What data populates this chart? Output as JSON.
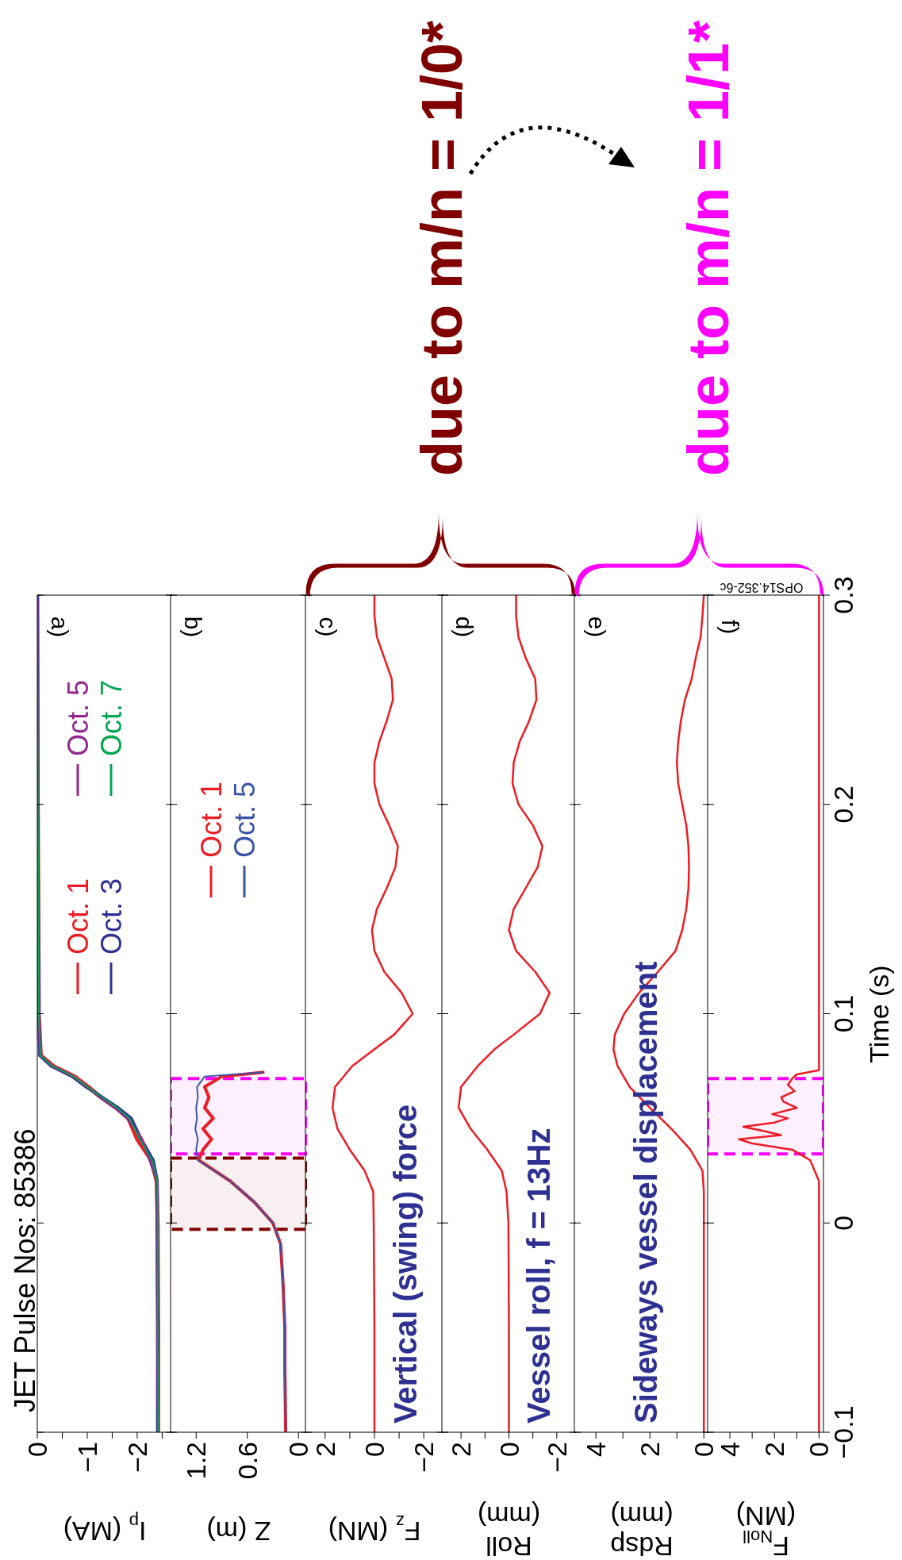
{
  "chart_data": [
    {
      "type": "line",
      "title": "JET Pulse Nos: 85386",
      "xlabel": "I$_{p}$ (MA)",
      "annotations": [
        "a)"
      ],
      "legend": "top left",
      "tick_labels": "x",
      "xlim": [
        0,
        -2.7
      ],
      "xticks": [
        0,
        {
          "value": -0.5,
          "label": null
        },
        {
          "value": -1,
          "label": "−1"
        },
        {
          "value": -1.5,
          "label": null
        },
        {
          "value": -2,
          "label": "−2"
        },
        {
          "value": -2.5,
          "label": null
        }
      ],
      "ylim": [
        -0.1,
        0.3
      ],
      "yticks": [
        -0.1,
        0,
        0.1,
        0.2,
        0.3
      ],
      "series": [
        {
          "name": "Oct. 1",
          "color": "#ed1c24",
          "x": [
            -2.42,
            -2.42,
            -2.41,
            -2.39,
            -2.28,
            -2.0,
            -1.82,
            -1.58,
            -1.28,
            -1.02,
            -0.75,
            -0.32,
            -0.07,
            -0.03,
            -0.01,
            0
          ],
          "values": [
            -0.1,
            -0.05,
            0,
            0.02,
            0.03,
            0.04,
            0.05,
            0.055,
            0.06,
            0.065,
            0.07,
            0.075,
            0.08,
            0.1,
            0.2,
            0.3
          ]
        },
        {
          "name": "Oct. 3",
          "color": "#2e3192",
          "x": [
            -2.41,
            -2.41,
            -2.4,
            -2.4,
            -2.32,
            -2.08,
            -1.88,
            -1.62,
            -1.3,
            -0.98,
            -0.7,
            -0.28,
            -0.05,
            -0.03,
            -0.01,
            0
          ],
          "values": [
            -0.1,
            -0.05,
            0,
            0.02,
            0.03,
            0.04,
            0.05,
            0.055,
            0.06,
            0.065,
            0.07,
            0.075,
            0.08,
            0.1,
            0.2,
            0.3
          ]
        },
        {
          "name": "Oct. 5",
          "color": "#92278f",
          "x": [
            -2.42,
            -2.41,
            -2.41,
            -2.4,
            -2.25,
            -2.1,
            -1.8,
            -1.55,
            -1.25,
            -1.0,
            -0.72,
            -0.3,
            -0.06,
            -0.03,
            -0.01,
            0
          ],
          "values": [
            -0.1,
            -0.05,
            0,
            0.02,
            0.03,
            0.04,
            0.05,
            0.055,
            0.06,
            0.065,
            0.07,
            0.075,
            0.08,
            0.1,
            0.2,
            0.3
          ]
        },
        {
          "name": "Oct. 7",
          "color": "#00a651",
          "x": [
            -2.42,
            -2.41,
            -2.41,
            -2.4,
            -2.3,
            -2.05,
            -1.85,
            -1.6,
            -1.3,
            -1.0,
            -0.73,
            -0.3,
            -0.06,
            -0.03,
            -0.01,
            0
          ],
          "values": [
            -0.1,
            -0.05,
            0,
            0.02,
            0.03,
            0.04,
            0.05,
            0.055,
            0.06,
            0.065,
            0.07,
            0.075,
            0.08,
            0.1,
            0.2,
            0.3
          ]
        }
      ]
    },
    {
      "type": "line",
      "xlabel": "Z (m)",
      "annotations": [
        "b)"
      ],
      "legend": "top left",
      "tick_labels": "x",
      "xlim": [
        1.5,
        -0.1
      ],
      "xticks": [
        0,
        0.6,
        1.2
      ],
      "ylim": [
        -0.1,
        0.3
      ],
      "yticks": [
        -0.1,
        0,
        0.1,
        0.2,
        0.3
      ],
      "bands": [
        {
          "axis": "y",
          "from": -0.003,
          "to": 0.031,
          "color": "#800000"
        },
        {
          "axis": "y",
          "from": 0.033,
          "to": 0.069,
          "color": "#ff00ff"
        }
      ],
      "series": [
        {
          "name": "Oct. 1",
          "color": "#ed1c24",
          "x": [
            0.15,
            0.16,
            0.16,
            0.18,
            0.21,
            0.3,
            0.52,
            0.8,
            1.17,
            1.12,
            1.02,
            1.12,
            1.0,
            1.1,
            1.05,
            1.1,
            0.9,
            0.4
          ],
          "values": [
            -0.1,
            -0.07,
            -0.05,
            -0.03,
            -0.01,
            0,
            0.01,
            0.02,
            0.03,
            0.035,
            0.04,
            0.045,
            0.05,
            0.055,
            0.06,
            0.065,
            0.07,
            0.072
          ]
        },
        {
          "name": "Oct. 5",
          "color": "#3b54a5",
          "x": [
            0.15,
            0.16,
            0.16,
            0.18,
            0.21,
            0.3,
            0.52,
            0.8,
            1.18,
            1.2,
            1.18,
            1.21,
            1.19,
            1.2,
            1.18,
            1.19,
            1.1,
            0.4
          ],
          "values": [
            -0.1,
            -0.07,
            -0.05,
            -0.03,
            -0.01,
            0,
            0.01,
            0.02,
            0.03,
            0.035,
            0.04,
            0.045,
            0.05,
            0.055,
            0.06,
            0.065,
            0.07,
            0.072
          ]
        }
      ]
    },
    {
      "type": "line",
      "xlabel": "F$_{z}$ (MN)",
      "annotations": [
        "c)",
        "Vertical (swing) force",
        "due to m/n = 1/0*"
      ],
      "tick_labels": "x",
      "xlim": [
        2.8,
        -2.8
      ],
      "xticks": [
        2,
        {
          "value": 1,
          "label": null
        },
        0,
        {
          "value": -1,
          "label": null
        },
        {
          "value": -2,
          "label": "−2"
        }
      ],
      "ylim": [
        -0.1,
        0.3
      ],
      "yticks": [
        -0.1,
        0,
        0.1,
        0.2,
        0.3
      ],
      "series": [
        {
          "color": "#ed1c24",
          "x": [
            0,
            0,
            0.03,
            0.05,
            0.4,
            1.0,
            1.5,
            1.7,
            1.6,
            0.9,
            0,
            -0.8,
            -1.55,
            -1.1,
            -0.4,
            0,
            0.1,
            -0.1,
            -0.5,
            -0.85,
            -0.95,
            -0.6,
            -0.2,
            0,
            0,
            -0.2,
            -0.5,
            -0.75,
            -0.7,
            -0.4,
            -0.1,
            0,
            0
          ],
          "values": [
            -0.1,
            -0.05,
            0,
            0.015,
            0.025,
            0.035,
            0.045,
            0.055,
            0.065,
            0.075,
            0.083,
            0.09,
            0.1,
            0.11,
            0.12,
            0.13,
            0.14,
            0.15,
            0.16,
            0.17,
            0.18,
            0.19,
            0.2,
            0.21,
            0.22,
            0.23,
            0.24,
            0.25,
            0.26,
            0.27,
            0.28,
            0.29,
            0.3
          ]
        }
      ]
    },
    {
      "type": "line",
      "xlabel": "Roll\n(mm)",
      "annotations": [
        "d)",
        "Vessel roll,  f = 13Hz"
      ],
      "tick_labels": "x",
      "xlim": [
        2.8,
        -2.8
      ],
      "xticks": [
        2,
        {
          "value": 1,
          "label": null
        },
        0,
        {
          "value": -1,
          "label": null
        },
        {
          "value": -2,
          "label": "−2"
        }
      ],
      "ylim": [
        -0.1,
        0.3
      ],
      "yticks": [
        -0.1,
        0,
        0.1,
        0.2,
        0.3
      ],
      "series": [
        {
          "color": "#ed1c24",
          "x": [
            0,
            0,
            0.02,
            0.1,
            0.3,
            0.9,
            1.6,
            2.1,
            2.0,
            1.3,
            0.6,
            -0.2,
            -1.3,
            -1.7,
            -1.1,
            -0.3,
            0,
            -0.2,
            -0.7,
            -1.2,
            -1.4,
            -1.0,
            -0.4,
            -0.15,
            -0.2,
            -0.45,
            -0.85,
            -1.15,
            -1.1,
            -0.7,
            -0.4,
            -0.3,
            -0.3
          ],
          "values": [
            -0.1,
            -0.05,
            0,
            0.015,
            0.025,
            0.035,
            0.045,
            0.055,
            0.065,
            0.075,
            0.083,
            0.09,
            0.1,
            0.11,
            0.12,
            0.13,
            0.14,
            0.15,
            0.16,
            0.17,
            0.18,
            0.19,
            0.2,
            0.21,
            0.22,
            0.23,
            0.24,
            0.25,
            0.26,
            0.27,
            0.28,
            0.29,
            0.3
          ]
        }
      ]
    },
    {
      "type": "line",
      "xlabel": "Rdsp\n(mm)",
      "annotations": [
        "e)",
        "Sideways vessel displacement",
        "due to m/n = 1/1*"
      ],
      "tick_labels": "x",
      "xlim": [
        4.8,
        -0.2
      ],
      "xticks": [
        4,
        {
          "value": 3,
          "label": null
        },
        2,
        {
          "value": 1,
          "label": null
        },
        0
      ],
      "ylim": [
        -0.1,
        0.3
      ],
      "yticks": [
        -0.1,
        0,
        0.1,
        0.2,
        0.3
      ],
      "series": [
        {
          "color": "#ed1c24",
          "x": [
            0,
            0,
            0,
            0,
            0.05,
            0.5,
            1.2,
            2.0,
            2.75,
            3.2,
            3.35,
            3.3,
            2.95,
            2.4,
            1.7,
            1.05,
            0.8,
            0.65,
            0.57,
            0.55,
            0.57,
            0.65,
            0.8,
            0.95,
            1.0,
            0.95,
            0.85,
            0.7,
            0.45,
            0.3,
            0.12,
            0.05,
            0
          ],
          "values": [
            -0.1,
            -0.05,
            0,
            0.015,
            0.025,
            0.035,
            0.045,
            0.055,
            0.065,
            0.075,
            0.083,
            0.09,
            0.1,
            0.11,
            0.12,
            0.13,
            0.14,
            0.15,
            0.16,
            0.17,
            0.18,
            0.19,
            0.2,
            0.21,
            0.22,
            0.23,
            0.24,
            0.25,
            0.26,
            0.27,
            0.28,
            0.29,
            0.3
          ]
        }
      ]
    },
    {
      "type": "line",
      "xlabel": "F$_{Noll}$\n(MN)",
      "ylabel": "Time (s)",
      "annotations": [
        "f)",
        "OPS14.352-6c"
      ],
      "xlim": [
        5,
        -0.2
      ],
      "xticks": [
        4,
        {
          "value": 3,
          "label": null
        },
        2,
        {
          "value": 1,
          "label": null
        },
        0
      ],
      "ylim": [
        -0.1,
        0.3
      ],
      "yticks": [
        {
          "value": -0.1,
          "label": "−0.1"
        },
        0,
        0.1,
        0.2,
        0.3
      ],
      "bands": [
        {
          "axis": "y",
          "from": 0.033,
          "to": 0.069,
          "color": "#ff00ff"
        }
      ],
      "series": [
        {
          "color": "#ed1c24",
          "x": [
            0,
            0,
            0.2,
            0.4,
            1.2,
            3.0,
            3.6,
            1.7,
            2.5,
            3.4,
            2.0,
            1.4,
            2.1,
            1.0,
            1.6,
            1.7,
            1.1,
            1.4,
            1.2,
            1.0,
            0,
            0,
            0
          ],
          "values": [
            -0.1,
            0.02,
            0.025,
            0.03,
            0.035,
            0.038,
            0.04,
            0.042,
            0.044,
            0.046,
            0.048,
            0.05,
            0.052,
            0.055,
            0.058,
            0.06,
            0.063,
            0.066,
            0.069,
            0.071,
            0.073,
            0.08,
            0.3
          ]
        }
      ]
    }
  ]
}
